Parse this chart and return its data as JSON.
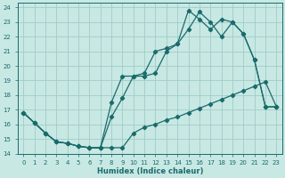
{
  "xlabel": "Humidex (Indice chaleur)",
  "xlim": [
    -0.5,
    23.5
  ],
  "ylim": [
    14,
    24.3
  ],
  "yticks": [
    14,
    15,
    16,
    17,
    18,
    19,
    20,
    21,
    22,
    23,
    24
  ],
  "xticks": [
    0,
    1,
    2,
    3,
    4,
    5,
    6,
    7,
    8,
    9,
    10,
    11,
    12,
    13,
    14,
    15,
    16,
    17,
    18,
    19,
    20,
    21,
    22,
    23
  ],
  "bg_color": "#c8e8e4",
  "grid_color": "#a0ccc8",
  "line_color": "#1a6b6b",
  "line1_x": [
    0,
    1,
    2,
    3,
    4,
    5,
    6,
    7,
    8,
    9,
    10,
    11,
    12,
    13,
    14,
    15,
    16,
    17,
    18,
    19,
    20,
    21,
    22,
    23
  ],
  "line1_y": [
    16.8,
    16.1,
    15.4,
    14.8,
    14.7,
    14.5,
    14.4,
    14.4,
    17.5,
    19.3,
    19.3,
    19.3,
    19.5,
    21.0,
    21.5,
    23.8,
    23.2,
    22.5,
    23.2,
    23.0,
    22.2,
    20.4,
    17.2,
    17.2
  ],
  "line2_x": [
    0,
    1,
    2,
    3,
    4,
    5,
    6,
    7,
    8,
    9,
    10,
    11,
    12,
    13,
    14,
    15,
    16,
    17,
    18,
    19,
    20,
    21,
    22,
    23
  ],
  "line2_y": [
    16.8,
    16.1,
    15.4,
    14.8,
    14.7,
    14.5,
    14.4,
    14.4,
    16.5,
    17.8,
    19.3,
    19.5,
    21.0,
    21.2,
    21.5,
    22.5,
    23.7,
    23.0,
    22.0,
    23.0,
    22.2,
    20.4,
    17.2,
    17.2
  ],
  "line3_x": [
    0,
    1,
    2,
    3,
    4,
    5,
    6,
    7,
    8,
    9,
    10,
    11,
    12,
    13,
    14,
    15,
    16,
    17,
    18,
    19,
    20,
    21,
    22,
    23
  ],
  "line3_y": [
    16.8,
    16.1,
    15.4,
    14.8,
    14.7,
    14.5,
    14.4,
    14.4,
    14.4,
    14.4,
    15.4,
    15.8,
    16.0,
    16.3,
    16.5,
    16.8,
    17.1,
    17.4,
    17.7,
    18.0,
    18.3,
    18.6,
    18.9,
    17.2
  ]
}
